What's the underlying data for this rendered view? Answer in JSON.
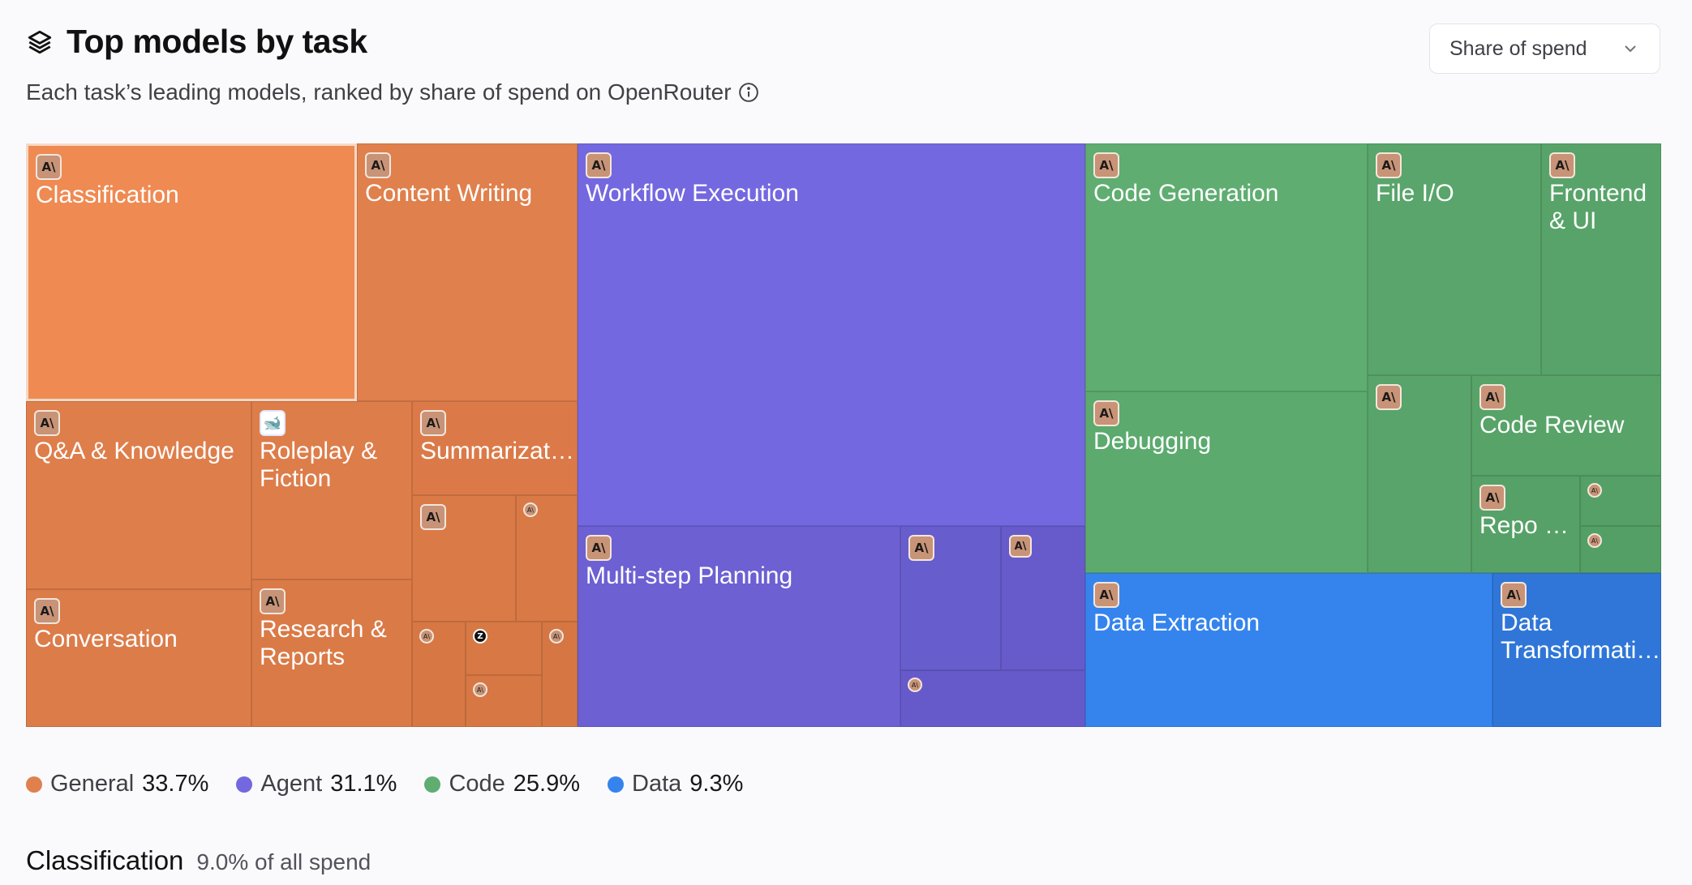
{
  "header": {
    "title": "Top models by task",
    "icon": "layers-icon"
  },
  "subtitle": {
    "text": "Each task’s leading models, ranked by share of spend on OpenRouter",
    "icon": "info-icon"
  },
  "dropdown": {
    "selected": "Share of spend",
    "icon": "chevron-down-icon"
  },
  "colors": {
    "general": "#e0804d",
    "agent": "#7468e0",
    "code": "#5fad71",
    "data": "#3584ee"
  },
  "treemap": {
    "cells": [
      {
        "name": "Classification",
        "logo": "anthropic",
        "color": "#ef8a52",
        "selected": true
      },
      {
        "name": "Content Writing",
        "logo": "anthropic",
        "color": "#e0804d"
      },
      {
        "name": "Q&A & Knowledge",
        "logo": "anthropic",
        "color": "#de7e4b"
      },
      {
        "name": "Roleplay & Fiction",
        "logo": "deepseek",
        "color": "#dd7d4a"
      },
      {
        "name": "Summarizat…",
        "logo": "anthropic",
        "color": "#db7a48"
      },
      {
        "name": "Conversation",
        "logo": "anthropic",
        "color": "#dc7c49"
      },
      {
        "name": "Research & Reports",
        "logo": "anthropic",
        "color": "#da7a47"
      },
      {
        "name": "Workflow Execution",
        "logo": "anthropic",
        "color": "#7468e0"
      },
      {
        "name": "Multi-step Planning",
        "logo": "anthropic",
        "color": "#6c60d3"
      },
      {
        "name": "Code Generation",
        "logo": "anthropic",
        "color": "#5fad71"
      },
      {
        "name": "File I/O",
        "logo": "anthropic",
        "color": "#59a56b"
      },
      {
        "name": "Frontend & UI",
        "logo": "anthropic",
        "color": "#58a369"
      },
      {
        "name": "Debugging",
        "logo": "anthropic",
        "color": "#5caa6e"
      },
      {
        "name": "Code Review",
        "logo": "anthropic",
        "color": "#57a368"
      },
      {
        "name": "Repo …",
        "logo": "anthropic",
        "color": "#56a167"
      },
      {
        "name": "Data Extraction",
        "logo": "anthropic",
        "color": "#3584ee"
      },
      {
        "name": "Data Transformati…",
        "logo": "anthropic",
        "color": "#2f76d8"
      }
    ]
  },
  "legend": [
    {
      "name": "General",
      "pct": "33.7%",
      "color": "#e0804d"
    },
    {
      "name": "Agent",
      "pct": "31.1%",
      "color": "#7468e0"
    },
    {
      "name": "Code",
      "pct": "25.9%",
      "color": "#5fad71"
    },
    {
      "name": "Data",
      "pct": "9.3%",
      "color": "#3584ee"
    }
  ],
  "section": {
    "name": "Classification",
    "share": "9.0% of all spend"
  },
  "logo_glyphs": {
    "anthropic": "A\\",
    "deepseek": "🐋",
    "zai": "Z"
  }
}
